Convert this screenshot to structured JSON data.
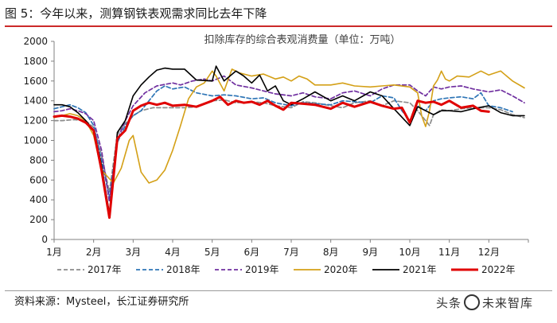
{
  "figure": {
    "title": "图 5：今年以来，测算钢铁表观需求同比去年下降",
    "source": "资料来源：Mysteel，长江证券研究所"
  },
  "watermark": {
    "left": "头条",
    "right": "未来智库"
  },
  "chart_data": {
    "type": "line",
    "title": "扣除库存的综合表观消费量（单位：万吨）",
    "ylim": [
      0,
      2000
    ],
    "yticks": [
      0,
      200,
      400,
      600,
      800,
      1000,
      1200,
      1400,
      1600,
      1800,
      2000
    ],
    "xlim": [
      1,
      13
    ],
    "xticks": [
      1,
      2,
      3,
      4,
      5,
      6,
      7,
      8,
      9,
      10,
      11,
      12
    ],
    "xtick_labels": [
      "1月",
      "2月",
      "3月",
      "4月",
      "5月",
      "6月",
      "7月",
      "8月",
      "9月",
      "10月",
      "11月",
      "12月"
    ],
    "grid": false,
    "legend_position": "bottom",
    "series": [
      {
        "name": "2017年",
        "color": "#8c8c8c",
        "dash": "dashed",
        "points": [
          [
            1.0,
            1200
          ],
          [
            1.2,
            1200
          ],
          [
            1.5,
            1210
          ],
          [
            1.8,
            1200
          ],
          [
            2.0,
            1130
          ],
          [
            2.2,
            850
          ],
          [
            2.4,
            480
          ],
          [
            2.6,
            1060
          ],
          [
            2.8,
            1170
          ],
          [
            3.0,
            1250
          ],
          [
            3.2,
            1300
          ],
          [
            3.5,
            1330
          ],
          [
            4.0,
            1330
          ],
          [
            4.3,
            1330
          ],
          [
            4.6,
            1340
          ],
          [
            5.0,
            1400
          ],
          [
            5.3,
            1410
          ],
          [
            5.6,
            1380
          ],
          [
            6.0,
            1390
          ],
          [
            6.3,
            1380
          ],
          [
            6.6,
            1350
          ],
          [
            7.0,
            1330
          ],
          [
            7.3,
            1390
          ],
          [
            7.6,
            1380
          ],
          [
            8.0,
            1350
          ],
          [
            8.3,
            1330
          ],
          [
            8.6,
            1380
          ],
          [
            9.0,
            1400
          ],
          [
            9.3,
            1350
          ],
          [
            9.6,
            1400
          ],
          [
            10.0,
            1380
          ],
          [
            10.2,
            1300
          ],
          [
            10.4,
            1200
          ],
          [
            10.5,
            1150
          ],
          [
            10.6,
            1260
          ],
          [
            10.8,
            1310
          ],
          [
            11.0,
            1300
          ],
          [
            11.3,
            1320
          ],
          [
            11.6,
            1330
          ],
          [
            12.0,
            1330
          ],
          [
            12.3,
            1310
          ],
          [
            12.6,
            1260
          ],
          [
            12.9,
            1230
          ]
        ]
      },
      {
        "name": "2018年",
        "color": "#2e75b6",
        "dash": "dashed",
        "points": [
          [
            1.0,
            1320
          ],
          [
            1.2,
            1340
          ],
          [
            1.4,
            1360
          ],
          [
            1.6,
            1330
          ],
          [
            1.8,
            1280
          ],
          [
            2.0,
            1150
          ],
          [
            2.2,
            800
          ],
          [
            2.4,
            430
          ],
          [
            2.6,
            980
          ],
          [
            2.8,
            1150
          ],
          [
            3.0,
            1250
          ],
          [
            3.2,
            1300
          ],
          [
            3.4,
            1400
          ],
          [
            3.6,
            1500
          ],
          [
            3.8,
            1550
          ],
          [
            4.0,
            1520
          ],
          [
            4.3,
            1540
          ],
          [
            4.6,
            1480
          ],
          [
            5.0,
            1450
          ],
          [
            5.3,
            1460
          ],
          [
            5.6,
            1450
          ],
          [
            6.0,
            1420
          ],
          [
            6.3,
            1430
          ],
          [
            6.6,
            1380
          ],
          [
            7.0,
            1350
          ],
          [
            7.3,
            1380
          ],
          [
            7.6,
            1370
          ],
          [
            8.0,
            1360
          ],
          [
            8.3,
            1400
          ],
          [
            8.6,
            1390
          ],
          [
            9.0,
            1380
          ],
          [
            9.3,
            1450
          ],
          [
            9.6,
            1430
          ],
          [
            9.8,
            1300
          ],
          [
            10.0,
            1200
          ],
          [
            10.2,
            1350
          ],
          [
            10.4,
            1300
          ],
          [
            10.6,
            1400
          ],
          [
            10.8,
            1420
          ],
          [
            11.0,
            1430
          ],
          [
            11.3,
            1440
          ],
          [
            11.6,
            1420
          ],
          [
            11.8,
            1480
          ],
          [
            12.0,
            1350
          ],
          [
            12.3,
            1330
          ],
          [
            12.6,
            1290
          ]
        ]
      },
      {
        "name": "2019年",
        "color": "#7030a0",
        "dash": "dashed",
        "points": [
          [
            1.0,
            1290
          ],
          [
            1.2,
            1300
          ],
          [
            1.4,
            1320
          ],
          [
            1.6,
            1300
          ],
          [
            1.8,
            1270
          ],
          [
            2.0,
            1200
          ],
          [
            2.2,
            900
          ],
          [
            2.4,
            380
          ],
          [
            2.6,
            1000
          ],
          [
            2.8,
            1200
          ],
          [
            3.0,
            1350
          ],
          [
            3.3,
            1480
          ],
          [
            3.6,
            1550
          ],
          [
            4.0,
            1580
          ],
          [
            4.2,
            1560
          ],
          [
            4.5,
            1600
          ],
          [
            4.8,
            1620
          ],
          [
            5.0,
            1600
          ],
          [
            5.3,
            1650
          ],
          [
            5.6,
            1560
          ],
          [
            6.0,
            1530
          ],
          [
            6.3,
            1500
          ],
          [
            6.6,
            1470
          ],
          [
            7.0,
            1450
          ],
          [
            7.3,
            1480
          ],
          [
            7.6,
            1440
          ],
          [
            8.0,
            1420
          ],
          [
            8.3,
            1480
          ],
          [
            8.6,
            1500
          ],
          [
            9.0,
            1450
          ],
          [
            9.3,
            1520
          ],
          [
            9.6,
            1560
          ],
          [
            10.0,
            1560
          ],
          [
            10.2,
            1500
          ],
          [
            10.4,
            1450
          ],
          [
            10.6,
            1540
          ],
          [
            10.8,
            1520
          ],
          [
            11.0,
            1540
          ],
          [
            11.3,
            1550
          ],
          [
            11.6,
            1520
          ],
          [
            12.0,
            1490
          ],
          [
            12.3,
            1510
          ],
          [
            12.6,
            1450
          ],
          [
            12.9,
            1380
          ]
        ]
      },
      {
        "name": "2020年",
        "color": "#d4a017",
        "dash": "solid",
        "points": [
          [
            1.0,
            1230
          ],
          [
            1.2,
            1250
          ],
          [
            1.4,
            1270
          ],
          [
            1.6,
            1250
          ],
          [
            1.8,
            1200
          ],
          [
            2.0,
            1050
          ],
          [
            2.2,
            700
          ],
          [
            2.5,
            570
          ],
          [
            2.7,
            720
          ],
          [
            2.9,
            1000
          ],
          [
            3.0,
            1050
          ],
          [
            3.2,
            680
          ],
          [
            3.4,
            570
          ],
          [
            3.6,
            600
          ],
          [
            3.8,
            700
          ],
          [
            4.0,
            900
          ],
          [
            4.2,
            1150
          ],
          [
            4.4,
            1420
          ],
          [
            4.6,
            1540
          ],
          [
            4.8,
            1580
          ],
          [
            5.0,
            1700
          ],
          [
            5.1,
            1650
          ],
          [
            5.3,
            1500
          ],
          [
            5.5,
            1720
          ],
          [
            5.7,
            1680
          ],
          [
            6.0,
            1650
          ],
          [
            6.3,
            1670
          ],
          [
            6.6,
            1620
          ],
          [
            6.8,
            1640
          ],
          [
            7.0,
            1600
          ],
          [
            7.2,
            1650
          ],
          [
            7.4,
            1620
          ],
          [
            7.6,
            1560
          ],
          [
            8.0,
            1560
          ],
          [
            8.3,
            1580
          ],
          [
            8.6,
            1550
          ],
          [
            9.0,
            1540
          ],
          [
            9.3,
            1550
          ],
          [
            9.6,
            1560
          ],
          [
            10.0,
            1540
          ],
          [
            10.2,
            1480
          ],
          [
            10.3,
            1250
          ],
          [
            10.4,
            1140
          ],
          [
            10.5,
            1300
          ],
          [
            10.6,
            1550
          ],
          [
            10.7,
            1610
          ],
          [
            10.8,
            1700
          ],
          [
            10.9,
            1620
          ],
          [
            11.0,
            1600
          ],
          [
            11.2,
            1650
          ],
          [
            11.5,
            1640
          ],
          [
            11.8,
            1700
          ],
          [
            12.0,
            1660
          ],
          [
            12.3,
            1700
          ],
          [
            12.6,
            1600
          ],
          [
            12.9,
            1530
          ]
        ]
      },
      {
        "name": "2021年",
        "color": "#000000",
        "dash": "solid",
        "points": [
          [
            1.0,
            1360
          ],
          [
            1.2,
            1360
          ],
          [
            1.4,
            1340
          ],
          [
            1.6,
            1280
          ],
          [
            1.8,
            1200
          ],
          [
            2.0,
            1100
          ],
          [
            2.2,
            750
          ],
          [
            2.4,
            260
          ],
          [
            2.6,
            1080
          ],
          [
            2.8,
            1200
          ],
          [
            3.0,
            1450
          ],
          [
            3.2,
            1560
          ],
          [
            3.4,
            1640
          ],
          [
            3.6,
            1710
          ],
          [
            3.8,
            1730
          ],
          [
            4.0,
            1720
          ],
          [
            4.3,
            1720
          ],
          [
            4.6,
            1610
          ],
          [
            5.0,
            1600
          ],
          [
            5.1,
            1750
          ],
          [
            5.3,
            1600
          ],
          [
            5.6,
            1700
          ],
          [
            5.8,
            1650
          ],
          [
            6.0,
            1580
          ],
          [
            6.2,
            1660
          ],
          [
            6.4,
            1500
          ],
          [
            6.6,
            1550
          ],
          [
            6.8,
            1400
          ],
          [
            7.0,
            1360
          ],
          [
            7.3,
            1420
          ],
          [
            7.6,
            1490
          ],
          [
            8.0,
            1400
          ],
          [
            8.3,
            1450
          ],
          [
            8.6,
            1400
          ],
          [
            9.0,
            1490
          ],
          [
            9.3,
            1450
          ],
          [
            9.6,
            1320
          ],
          [
            10.0,
            1150
          ],
          [
            10.2,
            1340
          ],
          [
            10.4,
            1300
          ],
          [
            10.6,
            1260
          ],
          [
            10.8,
            1300
          ],
          [
            11.0,
            1300
          ],
          [
            11.3,
            1290
          ],
          [
            11.6,
            1320
          ],
          [
            12.0,
            1350
          ],
          [
            12.3,
            1280
          ],
          [
            12.6,
            1250
          ],
          [
            12.9,
            1250
          ]
        ]
      },
      {
        "name": "2022年",
        "color": "#e00000",
        "dash": "solid",
        "points": [
          [
            1.0,
            1240
          ],
          [
            1.2,
            1250
          ],
          [
            1.4,
            1240
          ],
          [
            1.6,
            1220
          ],
          [
            1.8,
            1180
          ],
          [
            2.0,
            1100
          ],
          [
            2.2,
            700
          ],
          [
            2.4,
            220
          ],
          [
            2.6,
            1020
          ],
          [
            2.8,
            1100
          ],
          [
            3.0,
            1300
          ],
          [
            3.2,
            1350
          ],
          [
            3.4,
            1380
          ],
          [
            3.6,
            1360
          ],
          [
            3.8,
            1380
          ],
          [
            4.0,
            1350
          ],
          [
            4.3,
            1360
          ],
          [
            4.6,
            1340
          ],
          [
            5.0,
            1400
          ],
          [
            5.2,
            1440
          ],
          [
            5.4,
            1360
          ],
          [
            5.6,
            1400
          ],
          [
            5.8,
            1380
          ],
          [
            6.0,
            1390
          ],
          [
            6.2,
            1360
          ],
          [
            6.4,
            1400
          ],
          [
            6.6,
            1350
          ],
          [
            6.8,
            1310
          ],
          [
            7.0,
            1380
          ],
          [
            7.3,
            1370
          ],
          [
            7.6,
            1360
          ],
          [
            8.0,
            1320
          ],
          [
            8.3,
            1380
          ],
          [
            8.6,
            1340
          ],
          [
            9.0,
            1390
          ],
          [
            9.3,
            1350
          ],
          [
            9.6,
            1320
          ],
          [
            9.8,
            1330
          ],
          [
            10.0,
            1180
          ],
          [
            10.2,
            1400
          ],
          [
            10.4,
            1380
          ],
          [
            10.6,
            1390
          ],
          [
            10.8,
            1360
          ],
          [
            11.0,
            1400
          ],
          [
            11.3,
            1330
          ],
          [
            11.6,
            1350
          ],
          [
            11.8,
            1300
          ],
          [
            12.0,
            1290
          ]
        ]
      }
    ]
  }
}
